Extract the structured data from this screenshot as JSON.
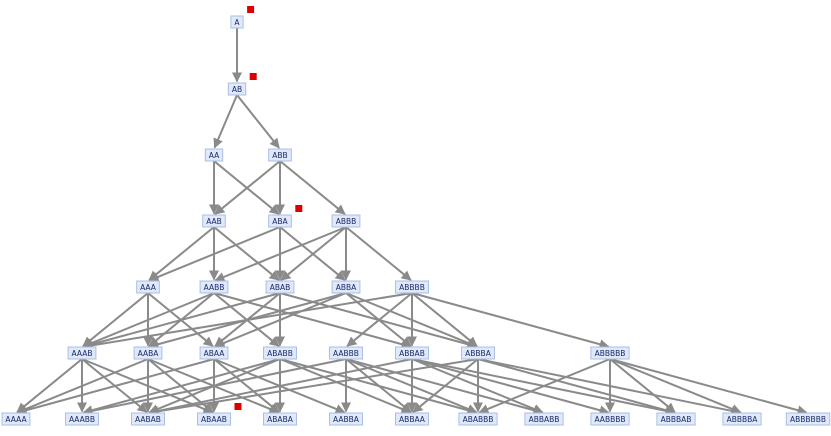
{
  "colors": {
    "node_fill": "#dfe9fb",
    "node_border": "#a9bfe3",
    "node_text": "#1a2a66",
    "edge": "#8a8a8a",
    "marker": "#dd0000"
  },
  "graph": {
    "levels": [
      [
        "A"
      ],
      [
        "AB"
      ],
      [
        "AA",
        "ABB"
      ],
      [
        "AAB",
        "ABA",
        "ABBB"
      ],
      [
        "AAA",
        "AABB",
        "ABAB",
        "ABBA",
        "ABBBB"
      ],
      [
        "AAAB",
        "AABA",
        "ABAA",
        "ABABB",
        "AABBB",
        "ABBAB",
        "ABBBA",
        "ABBBBB"
      ],
      [
        "AAAA",
        "AAABB",
        "AABAB",
        "ABAAB",
        "ABABA",
        "AABBA",
        "ABBAA",
        "ABABBB",
        "ABBABB",
        "AABBBB",
        "ABBBAB",
        "ABBBBA",
        "ABBBBBB"
      ]
    ],
    "marked_nodes": [
      "A",
      "AB",
      "ABA",
      "ABAAB"
    ],
    "edges": [
      [
        "A",
        "AB"
      ],
      [
        "AB",
        "AA"
      ],
      [
        "AB",
        "ABB"
      ],
      [
        "AA",
        "AAB"
      ],
      [
        "AA",
        "ABA"
      ],
      [
        "ABB",
        "AAB"
      ],
      [
        "ABB",
        "ABA"
      ],
      [
        "ABB",
        "ABBB"
      ],
      [
        "AAB",
        "AAA"
      ],
      [
        "AAB",
        "AABB"
      ],
      [
        "AAB",
        "ABAB"
      ],
      [
        "ABA",
        "AAA"
      ],
      [
        "ABA",
        "ABAB"
      ],
      [
        "ABA",
        "ABBA"
      ],
      [
        "ABBB",
        "AABB"
      ],
      [
        "ABBB",
        "ABAB"
      ],
      [
        "ABBB",
        "ABBA"
      ],
      [
        "ABBB",
        "ABBBB"
      ],
      [
        "AAA",
        "AAAB"
      ],
      [
        "AAA",
        "AABA"
      ],
      [
        "AAA",
        "ABAA"
      ],
      [
        "AABB",
        "AAAB"
      ],
      [
        "AABB",
        "AABA"
      ],
      [
        "AABB",
        "ABABB"
      ],
      [
        "AABB",
        "ABBAB"
      ],
      [
        "ABAB",
        "AAAB"
      ],
      [
        "ABAB",
        "ABAA"
      ],
      [
        "ABAB",
        "ABABB"
      ],
      [
        "ABAB",
        "ABBBA"
      ],
      [
        "ABBA",
        "AABA"
      ],
      [
        "ABBA",
        "ABAA"
      ],
      [
        "ABBA",
        "ABBAB"
      ],
      [
        "ABBA",
        "ABBBA"
      ],
      [
        "ABBBB",
        "AAAB"
      ],
      [
        "ABBBB",
        "AABBB"
      ],
      [
        "ABBBB",
        "ABBAB"
      ],
      [
        "ABBBB",
        "ABBBA"
      ],
      [
        "ABBBB",
        "ABBBBB"
      ],
      [
        "AAAB",
        "AAAA"
      ],
      [
        "AAAB",
        "AAABB"
      ],
      [
        "AAAB",
        "AABAB"
      ],
      [
        "AAAB",
        "ABAAB"
      ],
      [
        "AABA",
        "AAAA"
      ],
      [
        "AABA",
        "AABAB"
      ],
      [
        "AABA",
        "ABAAB"
      ],
      [
        "AABA",
        "ABABA"
      ],
      [
        "ABAA",
        "AAAA"
      ],
      [
        "ABAA",
        "ABAAB"
      ],
      [
        "ABAA",
        "ABABA"
      ],
      [
        "ABAA",
        "AABBA"
      ],
      [
        "ABABB",
        "AAABB"
      ],
      [
        "ABABB",
        "AABAB"
      ],
      [
        "ABABB",
        "ABABA"
      ],
      [
        "ABABB",
        "ABBAA"
      ],
      [
        "ABABB",
        "ABABBB"
      ],
      [
        "AABBB",
        "AAABB"
      ],
      [
        "AABBB",
        "AABBA"
      ],
      [
        "AABBB",
        "ABBAA"
      ],
      [
        "AABBB",
        "ABABBB"
      ],
      [
        "AABBB",
        "ABBABB"
      ],
      [
        "ABBAB",
        "AABAB"
      ],
      [
        "ABBAB",
        "ABBAA"
      ],
      [
        "ABBAB",
        "ABBABB"
      ],
      [
        "ABBAB",
        "AABBBB"
      ],
      [
        "ABBAB",
        "ABBBAB"
      ],
      [
        "ABBBA",
        "AABAB"
      ],
      [
        "ABBBA",
        "ABBAA"
      ],
      [
        "ABBBA",
        "ABABBB"
      ],
      [
        "ABBBA",
        "ABBBAB"
      ],
      [
        "ABBBA",
        "ABBBBA"
      ],
      [
        "ABBBBB",
        "AABBBB"
      ],
      [
        "ABBBBB",
        "ABBBAB"
      ],
      [
        "ABBBBB",
        "ABBBBA"
      ],
      [
        "ABBBBB",
        "ABBBBBB"
      ],
      [
        "ABBBBB",
        "ABABBB"
      ]
    ]
  }
}
